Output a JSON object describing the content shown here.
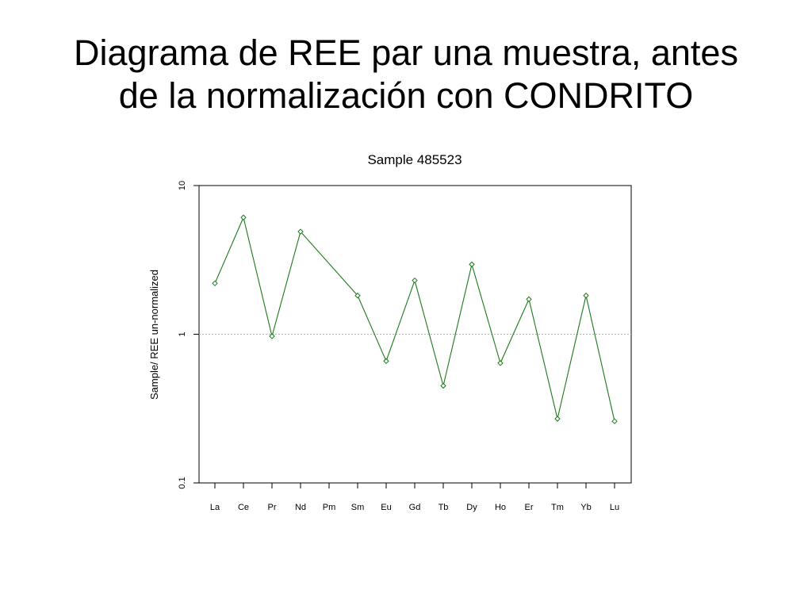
{
  "slide": {
    "title_line1": "Diagrama de REE par una muestra, antes",
    "title_line2": "de la normalización con CONDRITO"
  },
  "chart_data": {
    "type": "line",
    "title": "Sample  485523",
    "xlabel": "",
    "ylabel": "Sample/ REE un-normalized",
    "y_scale": "log",
    "ylim": [
      0.1,
      10
    ],
    "y_ticks": [
      0.1,
      1,
      10
    ],
    "y_tick_labels": [
      "0.1",
      "1",
      "10"
    ],
    "categories": [
      "La",
      "Ce",
      "Pr",
      "Nd",
      "Pm",
      "Sm",
      "Eu",
      "Gd",
      "Tb",
      "Dy",
      "Ho",
      "Er",
      "Tm",
      "Yb",
      "Lu"
    ],
    "series": [
      {
        "values": [
          2.2,
          6.1,
          0.97,
          4.9,
          null,
          1.82,
          0.66,
          2.3,
          0.45,
          2.95,
          0.64,
          1.72,
          0.27,
          1.82,
          0.26
        ]
      }
    ],
    "reference_line": 1,
    "grid": false,
    "legend": "none",
    "colors": {
      "line": "#1b7a1b",
      "marker": "#1b7a1b",
      "reference": "#b3b3b3",
      "axis": "#000000"
    }
  }
}
